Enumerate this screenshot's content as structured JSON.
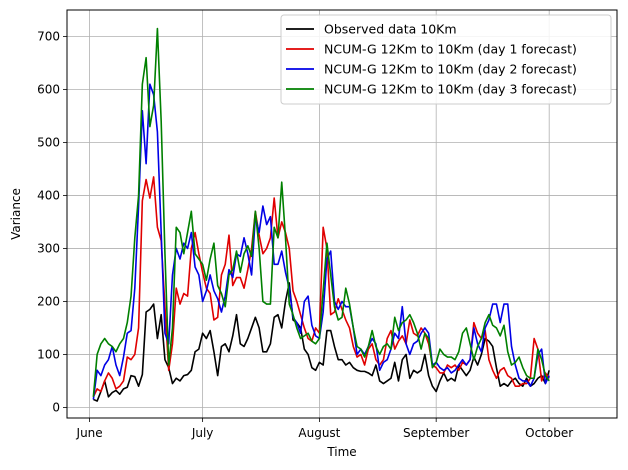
{
  "chart_data": {
    "type": "line",
    "title": "",
    "xlabel": "Time",
    "ylabel": "Variance",
    "xlim": [
      -6,
      140
    ],
    "ylim": [
      -20,
      750
    ],
    "grid": true,
    "legend_position": "top-right",
    "x_ticks": [
      {
        "value": 0,
        "label": "June"
      },
      {
        "value": 30,
        "label": "July"
      },
      {
        "value": 61,
        "label": "August"
      },
      {
        "value": 92,
        "label": "September"
      },
      {
        "value": 122,
        "label": "October"
      }
    ],
    "y_ticks": [
      0,
      100,
      200,
      300,
      400,
      500,
      600,
      700
    ],
    "x_start": 1,
    "series": [
      {
        "name": "Observed data 10Km",
        "color": "#000000",
        "values": [
          15,
          12,
          30,
          50,
          20,
          28,
          32,
          25,
          35,
          38,
          60,
          58,
          40,
          62,
          180,
          185,
          195,
          130,
          175,
          90,
          75,
          45,
          55,
          50,
          60,
          62,
          70,
          105,
          110,
          140,
          130,
          145,
          105,
          60,
          115,
          120,
          105,
          135,
          175,
          120,
          115,
          130,
          150,
          170,
          150,
          105,
          105,
          120,
          170,
          175,
          150,
          200,
          235,
          165,
          160,
          150,
          110,
          100,
          75,
          70,
          85,
          80,
          145,
          145,
          115,
          90,
          90,
          80,
          85,
          75,
          70,
          68,
          68,
          65,
          60,
          80,
          50,
          45,
          50,
          55,
          85,
          50,
          90,
          100,
          55,
          70,
          65,
          70,
          100,
          60,
          40,
          30,
          50,
          65,
          50,
          55,
          50,
          80,
          70,
          60,
          70,
          95,
          80,
          100,
          130,
          125,
          115,
          75,
          40,
          45,
          40,
          50,
          55,
          45,
          40,
          55,
          40,
          45,
          55,
          60,
          45,
          70
        ]
      },
      {
        "name": "NCUM-G 12Km to 10Km (day 1 forecast)",
        "color": "#e00000",
        "values": [
          20,
          35,
          30,
          50,
          65,
          55,
          35,
          40,
          50,
          95,
          90,
          100,
          150,
          390,
          430,
          395,
          435,
          340,
          315,
          190,
          70,
          120,
          225,
          195,
          215,
          210,
          300,
          330,
          290,
          255,
          225,
          215,
          165,
          170,
          250,
          270,
          325,
          230,
          245,
          245,
          225,
          260,
          300,
          370,
          325,
          290,
          300,
          320,
          395,
          320,
          350,
          330,
          300,
          220,
          200,
          175,
          150,
          130,
          125,
          150,
          140,
          340,
          300,
          175,
          180,
          205,
          185,
          165,
          150,
          115,
          95,
          100,
          80,
          110,
          120,
          90,
          80,
          90,
          130,
          145,
          110,
          125,
          135,
          120,
          165,
          140,
          135,
          150,
          140,
          120,
          80,
          75,
          65,
          65,
          80,
          75,
          80,
          70,
          85,
          80,
          90,
          160,
          140,
          130,
          145,
          90,
          70,
          55,
          70,
          75,
          60,
          55,
          40,
          40,
          45,
          45,
          55,
          130,
          110,
          50,
          65,
          55
        ]
      },
      {
        "name": "NCUM-G 12Km to 10Km (day 2 forecast)",
        "color": "#0000e6",
        "values": [
          15,
          70,
          60,
          80,
          90,
          115,
          80,
          60,
          95,
          140,
          145,
          225,
          380,
          560,
          460,
          610,
          590,
          520,
          330,
          140,
          120,
          250,
          300,
          280,
          310,
          300,
          330,
          265,
          250,
          200,
          220,
          250,
          220,
          205,
          180,
          210,
          260,
          245,
          290,
          285,
          320,
          290,
          250,
          360,
          330,
          380,
          345,
          360,
          270,
          270,
          295,
          255,
          225,
          170,
          160,
          140,
          200,
          210,
          155,
          135,
          130,
          180,
          280,
          295,
          200,
          185,
          200,
          190,
          190,
          150,
          100,
          110,
          100,
          115,
          130,
          120,
          70,
          85,
          90,
          110,
          140,
          130,
          190,
          120,
          100,
          120,
          125,
          140,
          150,
          140,
          80,
          85,
          75,
          70,
          75,
          65,
          70,
          80,
          90,
          80,
          90,
          150,
          120,
          105,
          150,
          165,
          195,
          195,
          160,
          195,
          195,
          115,
          80,
          55,
          50,
          50,
          40,
          55,
          100,
          110,
          45,
          60
        ]
      },
      {
        "name": "NCUM-G 12Km to 10Km (day 3 forecast)",
        "color": "#008000",
        "values": [
          20,
          100,
          120,
          130,
          120,
          115,
          105,
          120,
          130,
          160,
          210,
          320,
          400,
          610,
          660,
          530,
          570,
          715,
          540,
          290,
          80,
          150,
          340,
          330,
          290,
          330,
          370,
          290,
          280,
          270,
          240,
          280,
          310,
          230,
          215,
          190,
          250,
          260,
          295,
          255,
          290,
          305,
          285,
          370,
          300,
          200,
          195,
          195,
          340,
          320,
          425,
          320,
          195,
          175,
          150,
          130,
          135,
          140,
          125,
          120,
          130,
          220,
          310,
          250,
          190,
          165,
          170,
          225,
          195,
          150,
          115,
          110,
          95,
          115,
          145,
          115,
          100,
          115,
          120,
          110,
          170,
          145,
          160,
          165,
          175,
          160,
          140,
          110,
          140,
          130,
          75,
          85,
          110,
          100,
          95,
          95,
          90,
          105,
          140,
          150,
          120,
          90,
          115,
          130,
          160,
          175,
          155,
          150,
          135,
          155,
          105,
          80,
          85,
          95,
          75,
          60,
          55,
          55,
          110,
          90,
          60,
          50
        ]
      }
    ]
  }
}
